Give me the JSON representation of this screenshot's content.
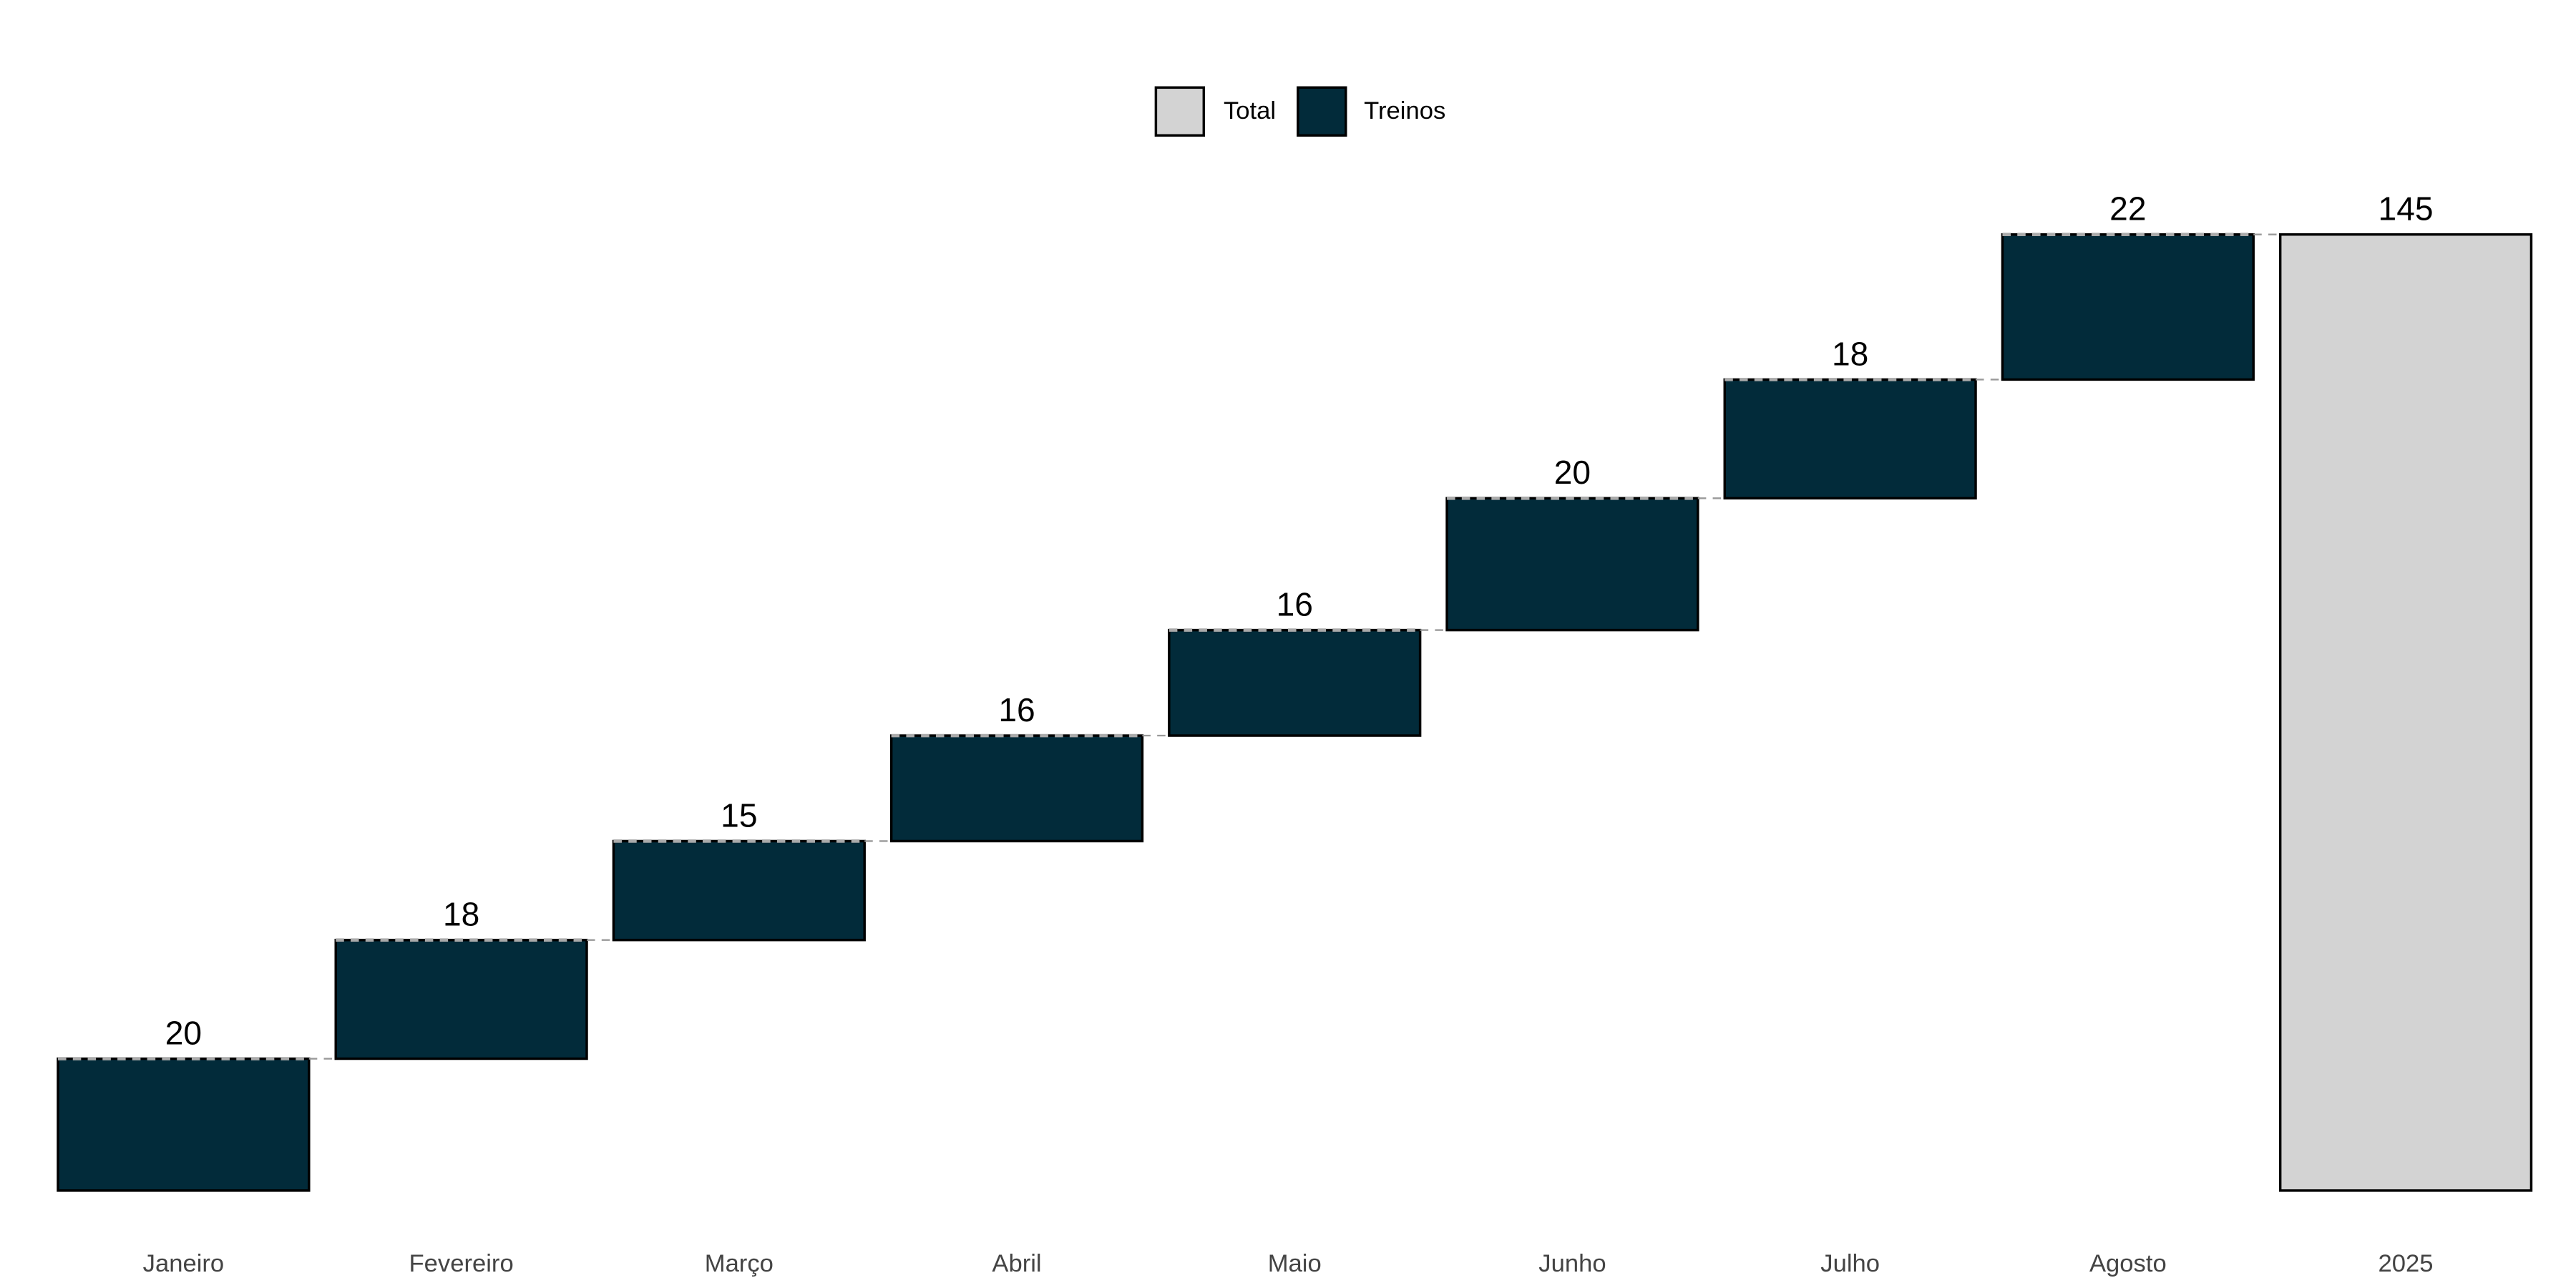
{
  "chart_data": {
    "type": "waterfall",
    "categories": [
      "Janeiro",
      "Fevereiro",
      "Março",
      "Abril",
      "Maio",
      "Junho",
      "Julho",
      "Agosto"
    ],
    "values": [
      20,
      18,
      15,
      16,
      16,
      20,
      18,
      22
    ],
    "total_label": "2025",
    "total": 145,
    "series": [
      {
        "name": "Total",
        "color": "#d3d3d3"
      },
      {
        "name": "Treinos",
        "color": "#022b3a"
      }
    ],
    "ylim": [
      0,
      145
    ],
    "legend": "top"
  }
}
